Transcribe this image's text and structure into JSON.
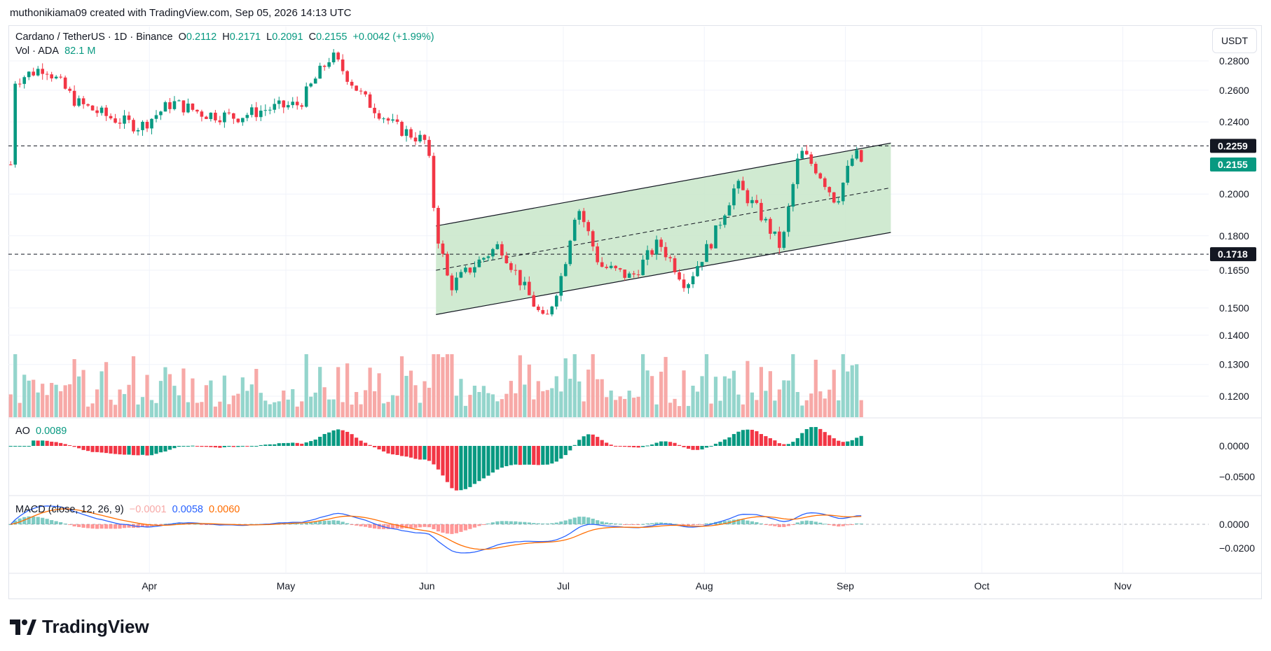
{
  "header": {
    "attribution": "muthonikiama09 created with TradingView.com, Sep 05, 2026 14:13 UTC"
  },
  "currency_badge": "USDT",
  "legend": {
    "symbol": "Cardano / TetherUS · 1D · Binance",
    "o_label": "O",
    "o_val": "0.2112",
    "h_label": "H",
    "h_val": "0.2171",
    "l_label": "L",
    "l_val": "0.2091",
    "c_label": "C",
    "c_val": "0.2155",
    "change": "+0.0042 (+1.99%)",
    "vol_label": "Vol · ADA",
    "vol_val": "82.1 M"
  },
  "ao_legend": {
    "label": "AO",
    "value": "0.0089"
  },
  "macd_legend": {
    "label": "MACD (close, 12, 26, 9)",
    "hist": "−0.0001",
    "macd": "0.0058",
    "signal": "0.0060"
  },
  "logo_text": "TradingView",
  "colors": {
    "up": "#089981",
    "down": "#f23645",
    "up_vol": "#94d5cc",
    "down_vol": "#f7a9a7",
    "channel_fill": "#c8e6c9",
    "macd_line": "#2962ff",
    "signal_line": "#ff6d00"
  },
  "chart_data": {
    "type": "candlestick",
    "price_axis": {
      "ticks": [
        "0.2800",
        "0.2600",
        "0.2400",
        "0.2000",
        "0.1800",
        "0.1650",
        "0.1500",
        "0.1400",
        "0.1300",
        "0.1200"
      ],
      "scale": "log"
    },
    "time_axis": {
      "ticks": [
        "Apr",
        "May",
        "Jun",
        "Jul",
        "Aug",
        "Sep",
        "Oct",
        "Nov"
      ]
    },
    "price_tags": [
      {
        "label": "0.2259",
        "style": "dark"
      },
      {
        "label": "0.2155",
        "style": "green"
      },
      {
        "label": "0.1718",
        "style": "dark"
      }
    ],
    "horizontal_levels": [
      0.2259,
      0.1718
    ],
    "channel": {
      "upper": [
        [
          "2026-06-03",
          0.1845
        ],
        [
          "2026-09-11",
          0.2275
        ]
      ],
      "lower": [
        [
          "2026-06-03",
          0.1475
        ],
        [
          "2026-09-11",
          0.1815
        ]
      ]
    },
    "close_path": [
      [
        "2026-03-02",
        0.266
      ],
      [
        "2026-03-09",
        0.276
      ],
      [
        "2026-03-16",
        0.252
      ],
      [
        "2026-03-23",
        0.243
      ],
      [
        "2026-03-30",
        0.237
      ],
      [
        "2026-04-06",
        0.252
      ],
      [
        "2026-04-13",
        0.245
      ],
      [
        "2026-04-20",
        0.243
      ],
      [
        "2026-04-27",
        0.248
      ],
      [
        "2026-05-04",
        0.251
      ],
      [
        "2026-05-11",
        0.284
      ],
      [
        "2026-05-18",
        0.255
      ],
      [
        "2026-05-25",
        0.237
      ],
      [
        "2026-06-01",
        0.228
      ],
      [
        "2026-06-03",
        0.183
      ],
      [
        "2026-06-06",
        0.158
      ],
      [
        "2026-06-12",
        0.168
      ],
      [
        "2026-06-17",
        0.176
      ],
      [
        "2026-06-22",
        0.159
      ],
      [
        "2026-06-27",
        0.144
      ],
      [
        "2026-07-01",
        0.165
      ],
      [
        "2026-07-04",
        0.195
      ],
      [
        "2026-07-09",
        0.167
      ],
      [
        "2026-07-16",
        0.162
      ],
      [
        "2026-07-22",
        0.177
      ],
      [
        "2026-07-28",
        0.159
      ],
      [
        "2026-08-03",
        0.179
      ],
      [
        "2026-08-08",
        0.205
      ],
      [
        "2026-08-13",
        0.191
      ],
      [
        "2026-08-18",
        0.174
      ],
      [
        "2026-08-22",
        0.223
      ],
      [
        "2026-08-26",
        0.212
      ],
      [
        "2026-08-30",
        0.196
      ],
      [
        "2026-09-03",
        0.222
      ],
      [
        "2026-09-05",
        0.2155
      ]
    ],
    "volume_axis": {
      "label": "Vol · ADA"
    },
    "ao": {
      "axis_ticks": [
        "0.0000",
        "−0.0500"
      ],
      "last": 0.0089
    },
    "macd": {
      "axis_ticks": [
        "0.0000",
        "−0.0200"
      ],
      "hist_last": -0.0001,
      "macd_last": 0.0058,
      "signal_last": 0.006
    }
  }
}
